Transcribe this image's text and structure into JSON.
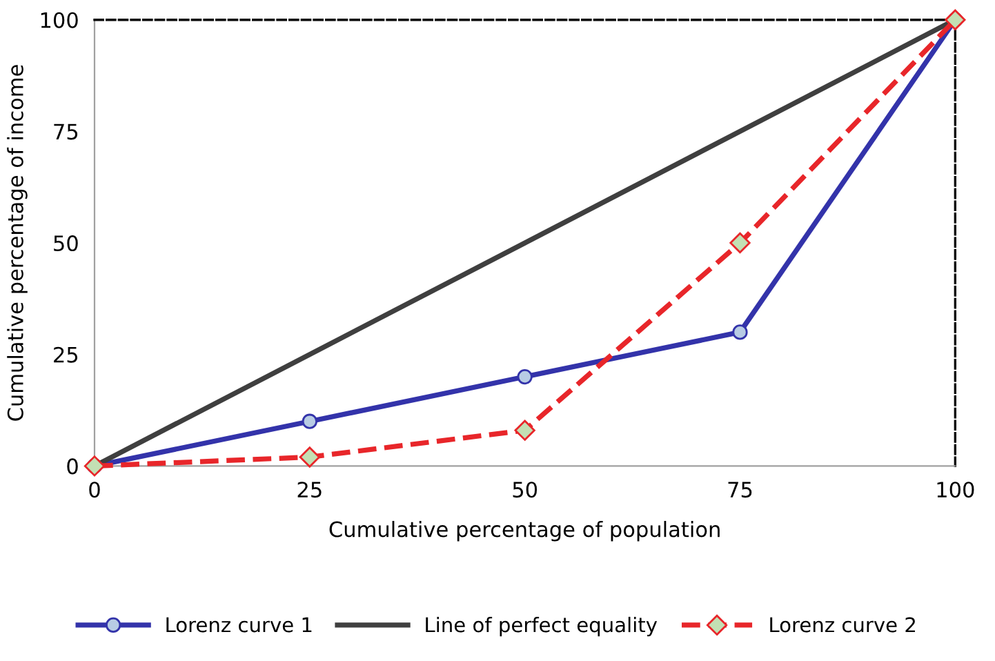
{
  "chart_data": {
    "type": "line",
    "xlabel": "Cumulative percentage of population",
    "ylabel": "Cumulative percentage of income",
    "x": [
      0,
      25,
      50,
      75,
      100
    ],
    "series": [
      {
        "name": "Lorenz curve 1",
        "color": "#3333aa",
        "values": [
          0,
          10,
          20,
          30,
          100
        ],
        "marker": "circle",
        "line_style": "solid"
      },
      {
        "name": "Line of perfect equality",
        "color": "#3f3f3f",
        "x": [
          0,
          100
        ],
        "values": [
          0,
          100
        ],
        "marker": "none",
        "line_style": "solid"
      },
      {
        "name": "Lorenz curve 2",
        "color": "#e8262a",
        "values": [
          0,
          2,
          8,
          50,
          100
        ],
        "marker": "diamond",
        "line_style": "dashed"
      }
    ],
    "xlim": [
      0,
      100
    ],
    "ylim": [
      0,
      100
    ],
    "xticks": [
      0,
      25,
      50,
      75,
      100
    ],
    "yticks": [
      0,
      25,
      50,
      75,
      100
    ],
    "grid": false,
    "legend": "bottom"
  }
}
